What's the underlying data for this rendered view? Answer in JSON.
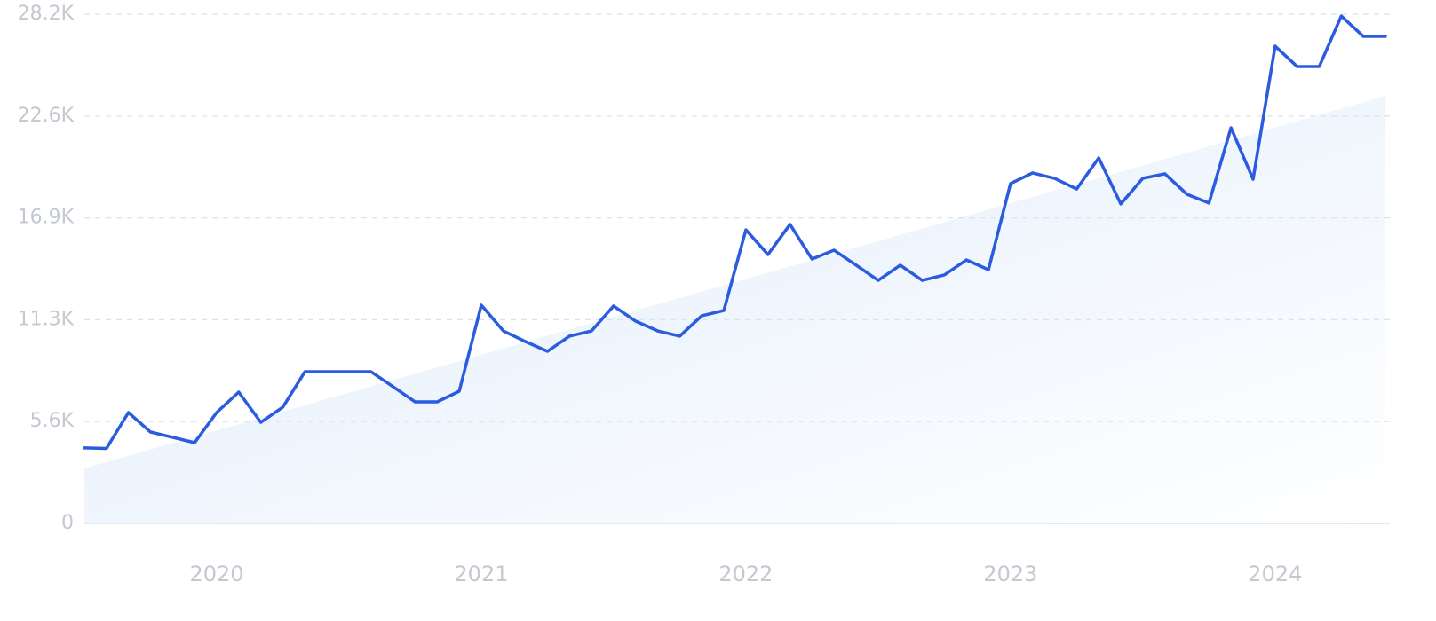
{
  "chart_data": {
    "type": "line",
    "categories": [
      null,
      null,
      null,
      null,
      null,
      null,
      "2020",
      null,
      null,
      null,
      null,
      null,
      null,
      null,
      null,
      null,
      null,
      null,
      "2021",
      null,
      null,
      null,
      null,
      null,
      null,
      null,
      null,
      null,
      null,
      null,
      "2022",
      null,
      null,
      null,
      null,
      null,
      null,
      null,
      null,
      null,
      null,
      null,
      "2023",
      null,
      null,
      null,
      null,
      null,
      null,
      null,
      null,
      null,
      null,
      null,
      "2024",
      null,
      null,
      null,
      null,
      null
    ],
    "series": [
      {
        "color": "#2b5bde",
        "values": [
          4180,
          4150,
          6140,
          5060,
          4770,
          4470,
          6140,
          7270,
          5600,
          6440,
          8400,
          8400,
          8400,
          8400,
          7570,
          6730,
          6730,
          7320,
          12090,
          10660,
          10070,
          9530,
          10370,
          10660,
          12040,
          11200,
          10660,
          10370,
          11500,
          11790,
          16260,
          14890,
          16560,
          14640,
          15130,
          14300,
          13460,
          14300,
          13460,
          13760,
          14590,
          14050,
          18820,
          19410,
          19110,
          18520,
          20240,
          17690,
          19110,
          19360,
          18230,
          17740,
          21910,
          19060,
          26430,
          25300,
          25300,
          28100,
          26970,
          26970
        ]
      }
    ],
    "trend": {
      "color": "#e1ecfb",
      "start": 3050,
      "end": 23680
    },
    "ylim": [
      0,
      28200
    ],
    "yticks": [
      0,
      {
        "value": 5640,
        "label": "5.6K"
      },
      {
        "value": 11280,
        "label": "11.3K"
      },
      {
        "value": 16920,
        "label": "16.9K"
      },
      {
        "value": 22560,
        "label": "22.6K"
      },
      {
        "value": 28200,
        "label": "28.2K"
      }
    ],
    "grid": true
  }
}
